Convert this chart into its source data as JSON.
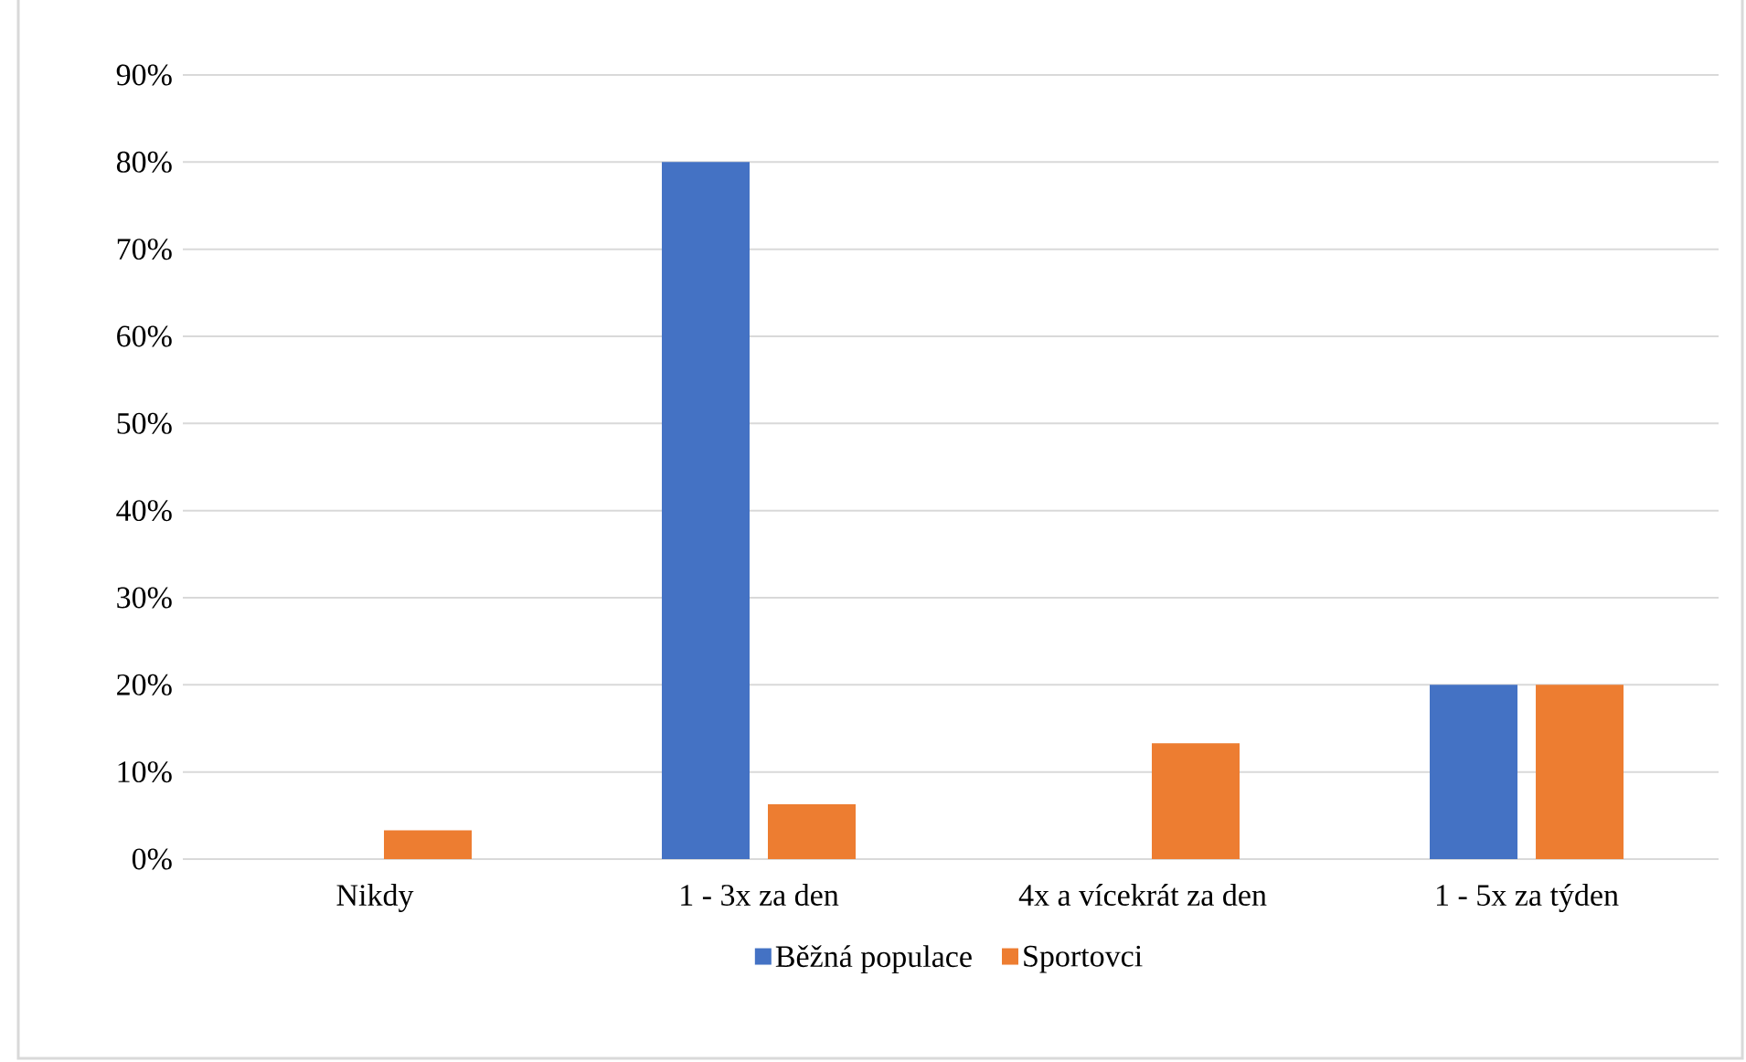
{
  "chart_data": {
    "type": "bar",
    "categories": [
      "Nikdy",
      "1 - 3x za den",
      "4x a vícekrát za den",
      "1 - 5x za týden"
    ],
    "series": [
      {
        "name": "Běžná populace",
        "color": "#4472c4",
        "values": [
          0,
          80,
          0,
          20
        ]
      },
      {
        "name": "Sportovci",
        "color": "#ed7d31",
        "values": [
          3.3,
          6.3,
          13.3,
          20
        ]
      }
    ],
    "ylim": [
      0,
      90
    ],
    "yticks": [
      {
        "value": 0,
        "label": "0%"
      },
      {
        "value": 10,
        "label": "10%"
      },
      {
        "value": 20,
        "label": "20%"
      },
      {
        "value": 30,
        "label": "30%"
      },
      {
        "value": 40,
        "label": "40%"
      },
      {
        "value": 50,
        "label": "50%"
      },
      {
        "value": 60,
        "label": "60%"
      },
      {
        "value": 70,
        "label": "70%"
      },
      {
        "value": 80,
        "label": "80%"
      },
      {
        "value": 90,
        "label": "90%"
      }
    ],
    "grid": "y",
    "legend": "bottom"
  }
}
